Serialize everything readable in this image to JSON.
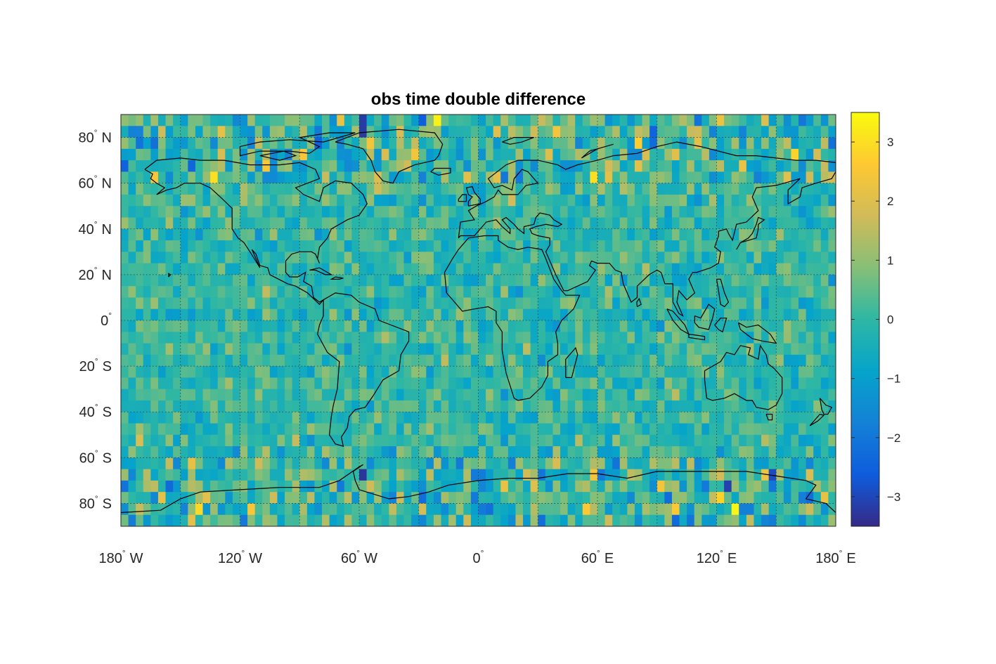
{
  "chart_data": {
    "type": "heatmap",
    "title": "obs time double difference",
    "projection": "equirectangular",
    "grid": true,
    "coastlines": true,
    "colormap": "parula",
    "x": {
      "label": "",
      "lim": [
        -180,
        180
      ],
      "ticks": [
        {
          "value": -180,
          "text": "180",
          "suffix": "W"
        },
        {
          "value": -120,
          "text": "120",
          "suffix": "W"
        },
        {
          "value": -60,
          "text": "60",
          "suffix": "W"
        },
        {
          "value": 0,
          "text": "0",
          "suffix": ""
        },
        {
          "value": 60,
          "text": "60",
          "suffix": "E"
        },
        {
          "value": 120,
          "text": "120",
          "suffix": "E"
        },
        {
          "value": 180,
          "text": "180",
          "suffix": "E"
        }
      ]
    },
    "y": {
      "label": "",
      "lim": [
        -90,
        90
      ],
      "ticks": [
        {
          "value": 80,
          "text": "80",
          "suffix": "N"
        },
        {
          "value": 60,
          "text": "60",
          "suffix": "N"
        },
        {
          "value": 40,
          "text": "40",
          "suffix": "N"
        },
        {
          "value": 20,
          "text": "20",
          "suffix": "N"
        },
        {
          "value": 0,
          "text": "0",
          "suffix": ""
        },
        {
          "value": -20,
          "text": "20",
          "suffix": "S"
        },
        {
          "value": -40,
          "text": "40",
          "suffix": "S"
        },
        {
          "value": -60,
          "text": "60",
          "suffix": "S"
        },
        {
          "value": -80,
          "text": "80",
          "suffix": "S"
        }
      ]
    },
    "grid_resolution_deg": {
      "lon": 3.75,
      "lat": 5
    },
    "colorbar": {
      "lim": [
        -3.5,
        3.5
      ],
      "ticks": [
        3,
        2,
        1,
        0,
        -1,
        -2,
        -3
      ],
      "tick_labels": [
        "3",
        "2",
        "1",
        "0",
        "−1",
        "−2",
        "−3"
      ]
    },
    "highlight_cells": [
      {
        "lon": -20.6,
        "lat": 87.5,
        "value": 3.3
      },
      {
        "lon": 129.4,
        "lat": -82.5,
        "value": 3.4
      },
      {
        "lon": 58.1,
        "lat": 62.5,
        "value": 3.0
      },
      {
        "lon": -133.1,
        "lat": 62.5,
        "value": 3.0
      },
      {
        "lon": -163.1,
        "lat": 62.5,
        "value": 2.5
      },
      {
        "lon": -58.1,
        "lat": 87.5,
        "value": -3.2
      },
      {
        "lon": -58.1,
        "lat": 82.5,
        "value": -3.2
      },
      {
        "lon": -58.1,
        "lat": -67.5,
        "value": -3.3
      },
      {
        "lon": 125.6,
        "lat": -72.5,
        "value": -3.1
      },
      {
        "lon": 80.6,
        "lat": 77.5,
        "value": 2.7
      },
      {
        "lon": 159.4,
        "lat": 72.5,
        "value": 2.8
      },
      {
        "lon": -114.4,
        "lat": -82.5,
        "value": 2.5
      },
      {
        "lon": 39.4,
        "lat": 82.5,
        "value": 2.4
      },
      {
        "lon": 54.4,
        "lat": -82.5,
        "value": 2.6
      },
      {
        "lon": 99.4,
        "lat": -82.5,
        "value": 2.6
      },
      {
        "lon": -88.1,
        "lat": 72.5,
        "value": 2.5
      }
    ],
    "note_values": "Cell values are mostly in the range -1 to 1 with larger magnitudes at high latitudes."
  }
}
